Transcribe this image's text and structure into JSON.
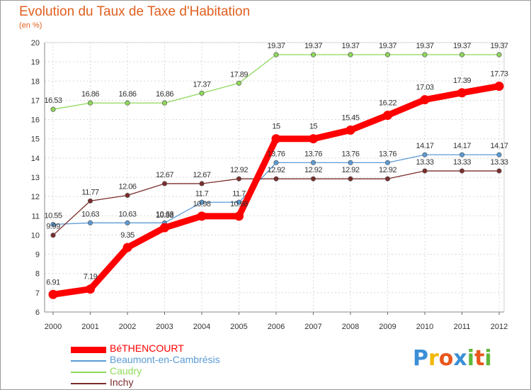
{
  "title": "Evolution du Taux de Taxe d'Habitation",
  "subtitle": "(en %)",
  "logo": {
    "letters": [
      {
        "ch": "P",
        "color": "#3b8fd6"
      },
      {
        "ch": "r",
        "color": "#f2b705"
      },
      {
        "ch": "o",
        "color": "#e8571c"
      },
      {
        "ch": "x",
        "color": "#3b8fd6"
      },
      {
        "ch": "i",
        "color": "#5fb83a"
      },
      {
        "ch": "t",
        "color": "#e8571c"
      },
      {
        "ch": "i",
        "color": "#5fb83a"
      }
    ]
  },
  "chart_data": {
    "type": "line",
    "title": "Evolution du Taux de Taxe d'Habitation",
    "ylabel": "(en %)",
    "xlabel": "",
    "x": [
      "2000",
      "2001",
      "2002",
      "2003",
      "2004",
      "2005",
      "2006",
      "2007",
      "2008",
      "2009",
      "2010",
      "2011",
      "2012"
    ],
    "ylim": [
      6,
      20
    ],
    "yticks": [
      6,
      7,
      8,
      9,
      10,
      11,
      12,
      13,
      14,
      15,
      16,
      17,
      18,
      19,
      20
    ],
    "grid": true,
    "legend_position": "bottom-left",
    "series": [
      {
        "name": "BéTHENCOURT",
        "color": "#ff0000",
        "bold": true,
        "values": [
          6.91,
          7.19,
          9.35,
          10.38,
          10.98,
          10.98,
          15,
          15,
          15.45,
          16.22,
          17.03,
          17.39,
          17.73
        ],
        "labels": [
          "6.91",
          "7.19",
          "9.35",
          "10.38",
          "10.98",
          "10.98",
          "15",
          "15",
          "15.45",
          "16.22",
          "17.03",
          "17.39",
          "17.73"
        ]
      },
      {
        "name": "Beaumont-en-Cambrésis",
        "color": "#5b9bd5",
        "bold": false,
        "values": [
          10.55,
          10.63,
          10.63,
          10.63,
          11.7,
          11.7,
          13.76,
          13.76,
          13.76,
          13.76,
          14.17,
          14.17,
          14.17
        ],
        "labels": [
          "10.55",
          "10.63",
          "10.63",
          "10.63",
          "11.7",
          "11.7",
          "13.76",
          "13.76",
          "13.76",
          "13.76",
          "14.17",
          "14.17",
          "14.17"
        ]
      },
      {
        "name": "Caudry",
        "color": "#8fd95a",
        "bold": false,
        "values": [
          16.53,
          16.86,
          16.86,
          16.86,
          17.37,
          17.89,
          19.37,
          19.37,
          19.37,
          19.37,
          19.37,
          19.37,
          19.37
        ],
        "labels": [
          "16.53",
          "16.86",
          "16.86",
          "16.86",
          "17.37",
          "17.89",
          "19.37",
          "19.37",
          "19.37",
          "19.37",
          "19.37",
          "19.37",
          "19.37"
        ]
      },
      {
        "name": "Inchy",
        "color": "#7b2c2c",
        "bold": false,
        "values": [
          9.99,
          11.77,
          12.06,
          12.67,
          12.67,
          12.92,
          12.92,
          12.92,
          12.92,
          12.92,
          13.33,
          13.33,
          13.33
        ],
        "labels": [
          "9.99",
          "11.77",
          "12.06",
          "12.67",
          "12.67",
          "12.92",
          "12.92",
          "12.92",
          "12.92",
          "12.92",
          "13.33",
          "13.33",
          "13.33"
        ]
      }
    ]
  }
}
